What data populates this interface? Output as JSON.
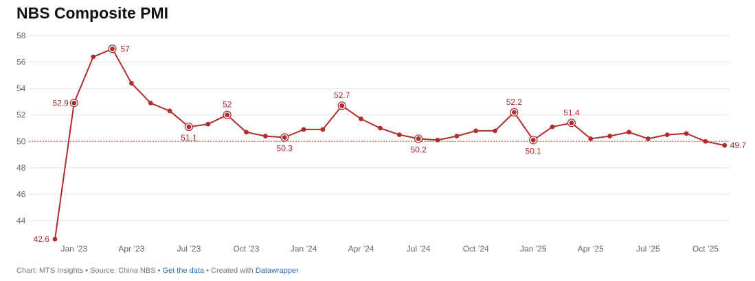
{
  "chart_data": {
    "type": "line",
    "title": "NBS Composite PMI",
    "xlabel": "",
    "ylabel": "",
    "ylim": [
      42.6,
      58
    ],
    "yticks": [
      44,
      46,
      48,
      50,
      52,
      54,
      56,
      58
    ],
    "reference_line": 50,
    "x_tick_labels": [
      "Jan ’23",
      "Apr ’23",
      "Jul ’23",
      "Oct ’23",
      "Jan ’24",
      "Apr ’24",
      "Jul ’24",
      "Oct ’24",
      "Jan ’25",
      "Apr ’25",
      "Jul ’25",
      "Oct ’25"
    ],
    "grid": true,
    "line_color": "#b22b2b",
    "x": [
      "Dec 2022",
      "Jan 2023",
      "Feb 2023",
      "Mar 2023",
      "Apr 2023",
      "May 2023",
      "Jun 2023",
      "Jul 2023",
      "Aug 2023",
      "Sep 2023",
      "Oct 2023",
      "Nov 2023",
      "Dec 2023",
      "Jan 2024",
      "Feb 2024",
      "Mar 2024",
      "Apr 2024",
      "May 2024",
      "Jun 2024",
      "Jul 2024",
      "Aug 2024",
      "Sep 2024",
      "Oct 2024",
      "Nov 2024",
      "Dec 2024",
      "Jan 2025",
      "Feb 2025",
      "Mar 2025",
      "Apr 2025",
      "May 2025",
      "Jun 2025",
      "Jul 2025",
      "Aug 2025",
      "Sep 2025",
      "Oct 2025",
      "Nov 2025"
    ],
    "values": [
      42.6,
      52.9,
      56.4,
      57.0,
      54.4,
      52.9,
      52.3,
      51.1,
      51.3,
      52.0,
      50.7,
      50.4,
      50.3,
      50.9,
      50.9,
      52.7,
      51.7,
      51.0,
      50.5,
      50.2,
      50.1,
      50.4,
      50.8,
      50.8,
      52.2,
      50.1,
      51.1,
      51.4,
      50.2,
      50.4,
      50.7,
      50.2,
      50.5,
      50.6,
      50.0,
      49.7
    ],
    "annotations": [
      {
        "index": 0,
        "text": "42.6"
      },
      {
        "index": 1,
        "text": "52.9"
      },
      {
        "index": 3,
        "text": "57"
      },
      {
        "index": 7,
        "text": "51.1"
      },
      {
        "index": 9,
        "text": "52"
      },
      {
        "index": 12,
        "text": "50.3"
      },
      {
        "index": 15,
        "text": "52.7"
      },
      {
        "index": 19,
        "text": "50.2"
      },
      {
        "index": 24,
        "text": "52.2"
      },
      {
        "index": 25,
        "text": "50.1"
      },
      {
        "index": 27,
        "text": "51.4"
      },
      {
        "index": 35,
        "text": "49.7"
      }
    ]
  },
  "footer": {
    "prefix": "Chart: MTS Insights • Source: China NBS • ",
    "get_data_link": "Get the data",
    "middle": " • Created with ",
    "datawrapper_link": "Datawrapper"
  }
}
